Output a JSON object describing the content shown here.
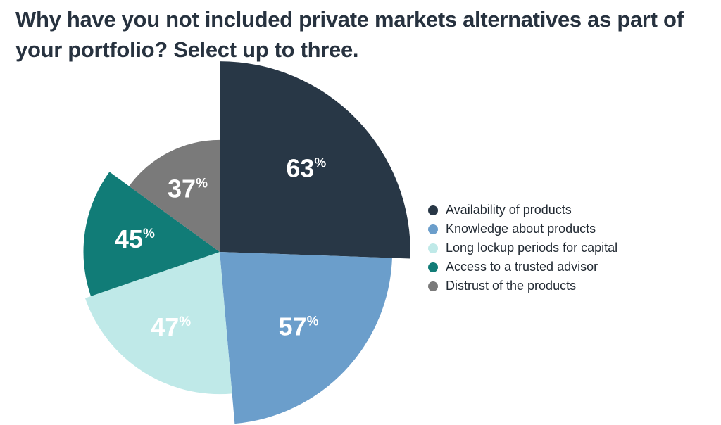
{
  "title": "Why have you not included private markets alternatives as part of your portfolio? Select up to three.",
  "chart_data": {
    "type": "pie",
    "subtype": "polar-area",
    "categories": [
      "Availability of products",
      "Knowledge about products",
      "Long lockup periods for capital",
      "Access to a trusted advisor",
      "Distrust of the products"
    ],
    "values": [
      63,
      57,
      47,
      45,
      37
    ],
    "labels": [
      "63",
      "57",
      "47",
      "45",
      "37"
    ],
    "unit": "%",
    "colors": [
      "#283746",
      "#6b9ecb",
      "#bfe9e8",
      "#117c77",
      "#7a7a7a"
    ],
    "legend_position": "right"
  }
}
